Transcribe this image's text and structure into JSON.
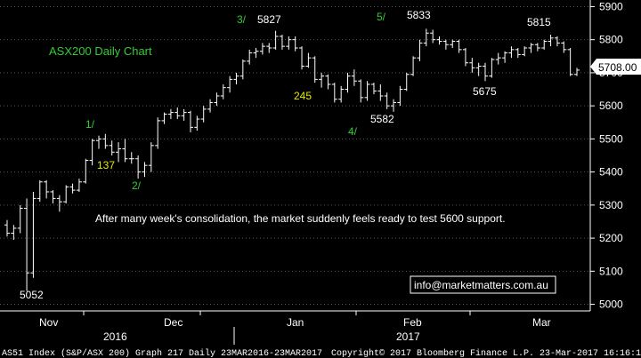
{
  "chart_data": {
    "type": "ohlc",
    "title": "ASX200 Daily Chart",
    "ylim": [
      4980,
      5920
    ],
    "yticks": [
      5000,
      5100,
      5200,
      5300,
      5400,
      5500,
      5600,
      5700,
      5800,
      5900
    ],
    "last_price": "5708.00",
    "months": [
      "Nov",
      "Dec",
      "Jan",
      "Feb",
      "Mar"
    ],
    "years": [
      "2016",
      "2017"
    ],
    "annotation": "After many week's consolidation, the market suddenly feels ready to test 5600 support.",
    "wave_labels": [
      "1/",
      "2/",
      "3/",
      "4/",
      "5/"
    ],
    "value_labels": [
      "5052",
      "137",
      "5827",
      "245",
      "5582",
      "5833",
      "5675",
      "5815"
    ],
    "email": "info@marketmatters.com.au",
    "footer_left": "AS51 Index (S&P/ASX 200) Graph 217  Daily 23MAR2016-23MAR2017",
    "footer_right": "Copyright© 2017 Bloomberg Finance L.P.     23-Mar-2017 16:16:10",
    "colors": {
      "background": "#000000",
      "bars": "#ffffff",
      "title": "#33cc33",
      "wave": "#33cc33",
      "wave_yellow": "#e6e600",
      "text": "#ffffff"
    },
    "bars": [
      [
        5240,
        5255,
        5205,
        5215
      ],
      [
        5215,
        5240,
        5195,
        5230
      ],
      [
        5230,
        5300,
        5215,
        5290
      ],
      [
        5290,
        5320,
        5040,
        5095
      ],
      [
        5095,
        5340,
        5080,
        5320
      ],
      [
        5320,
        5375,
        5310,
        5370
      ],
      [
        5370,
        5375,
        5320,
        5340
      ],
      [
        5340,
        5345,
        5305,
        5320
      ],
      [
        5320,
        5330,
        5280,
        5310
      ],
      [
        5310,
        5360,
        5305,
        5355
      ],
      [
        5355,
        5365,
        5335,
        5345
      ],
      [
        5345,
        5380,
        5340,
        5370
      ],
      [
        5370,
        5440,
        5365,
        5435
      ],
      [
        5435,
        5500,
        5420,
        5495
      ],
      [
        5495,
        5510,
        5470,
        5500
      ],
      [
        5500,
        5515,
        5470,
        5480
      ],
      [
        5480,
        5495,
        5450,
        5460
      ],
      [
        5460,
        5490,
        5430,
        5470
      ],
      [
        5470,
        5500,
        5430,
        5440
      ],
      [
        5440,
        5460,
        5425,
        5440
      ],
      [
        5440,
        5450,
        5380,
        5400
      ],
      [
        5400,
        5430,
        5385,
        5420
      ],
      [
        5420,
        5490,
        5400,
        5480
      ],
      [
        5480,
        5565,
        5470,
        5555
      ],
      [
        5555,
        5580,
        5545,
        5575
      ],
      [
        5575,
        5590,
        5560,
        5580
      ],
      [
        5580,
        5595,
        5560,
        5570
      ],
      [
        5570,
        5590,
        5555,
        5580
      ],
      [
        5580,
        5585,
        5520,
        5535
      ],
      [
        5535,
        5570,
        5525,
        5560
      ],
      [
        5560,
        5600,
        5550,
        5590
      ],
      [
        5590,
        5620,
        5580,
        5610
      ],
      [
        5610,
        5640,
        5600,
        5630
      ],
      [
        5630,
        5665,
        5620,
        5655
      ],
      [
        5655,
        5690,
        5640,
        5680
      ],
      [
        5680,
        5700,
        5665,
        5690
      ],
      [
        5690,
        5740,
        5680,
        5735
      ],
      [
        5735,
        5770,
        5725,
        5760
      ],
      [
        5760,
        5775,
        5745,
        5765
      ],
      [
        5765,
        5790,
        5755,
        5780
      ],
      [
        5780,
        5790,
        5760,
        5775
      ],
      [
        5775,
        5827,
        5770,
        5810
      ],
      [
        5810,
        5815,
        5770,
        5780
      ],
      [
        5780,
        5810,
        5770,
        5800
      ],
      [
        5800,
        5810,
        5765,
        5775
      ],
      [
        5775,
        5780,
        5710,
        5720
      ],
      [
        5720,
        5760,
        5715,
        5745
      ],
      [
        5745,
        5750,
        5670,
        5680
      ],
      [
        5680,
        5700,
        5655,
        5690
      ],
      [
        5690,
        5695,
        5650,
        5665
      ],
      [
        5665,
        5670,
        5610,
        5620
      ],
      [
        5620,
        5660,
        5610,
        5650
      ],
      [
        5650,
        5700,
        5640,
        5690
      ],
      [
        5690,
        5710,
        5660,
        5675
      ],
      [
        5675,
        5680,
        5610,
        5625
      ],
      [
        5625,
        5675,
        5615,
        5665
      ],
      [
        5665,
        5670,
        5635,
        5645
      ],
      [
        5645,
        5665,
        5615,
        5630
      ],
      [
        5630,
        5640,
        5590,
        5600
      ],
      [
        5600,
        5620,
        5582,
        5610
      ],
      [
        5610,
        5660,
        5600,
        5650
      ],
      [
        5650,
        5700,
        5645,
        5695
      ],
      [
        5695,
        5750,
        5690,
        5745
      ],
      [
        5745,
        5800,
        5735,
        5790
      ],
      [
        5790,
        5833,
        5780,
        5820
      ],
      [
        5820,
        5830,
        5790,
        5800
      ],
      [
        5800,
        5810,
        5785,
        5795
      ],
      [
        5795,
        5800,
        5770,
        5785
      ],
      [
        5785,
        5800,
        5775,
        5795
      ],
      [
        5795,
        5800,
        5760,
        5770
      ],
      [
        5770,
        5775,
        5720,
        5730
      ],
      [
        5730,
        5745,
        5700,
        5715
      ],
      [
        5715,
        5730,
        5690,
        5720
      ],
      [
        5720,
        5730,
        5675,
        5690
      ],
      [
        5690,
        5745,
        5685,
        5740
      ],
      [
        5740,
        5760,
        5725,
        5745
      ],
      [
        5745,
        5765,
        5730,
        5760
      ],
      [
        5760,
        5780,
        5745,
        5770
      ],
      [
        5770,
        5775,
        5745,
        5755
      ],
      [
        5755,
        5780,
        5750,
        5775
      ],
      [
        5775,
        5790,
        5760,
        5785
      ],
      [
        5785,
        5790,
        5765,
        5775
      ],
      [
        5775,
        5800,
        5770,
        5795
      ],
      [
        5795,
        5815,
        5780,
        5805
      ],
      [
        5805,
        5810,
        5780,
        5790
      ],
      [
        5790,
        5795,
        5760,
        5770
      ],
      [
        5770,
        5775,
        5690,
        5695
      ],
      [
        5695,
        5715,
        5690,
        5708
      ]
    ]
  }
}
